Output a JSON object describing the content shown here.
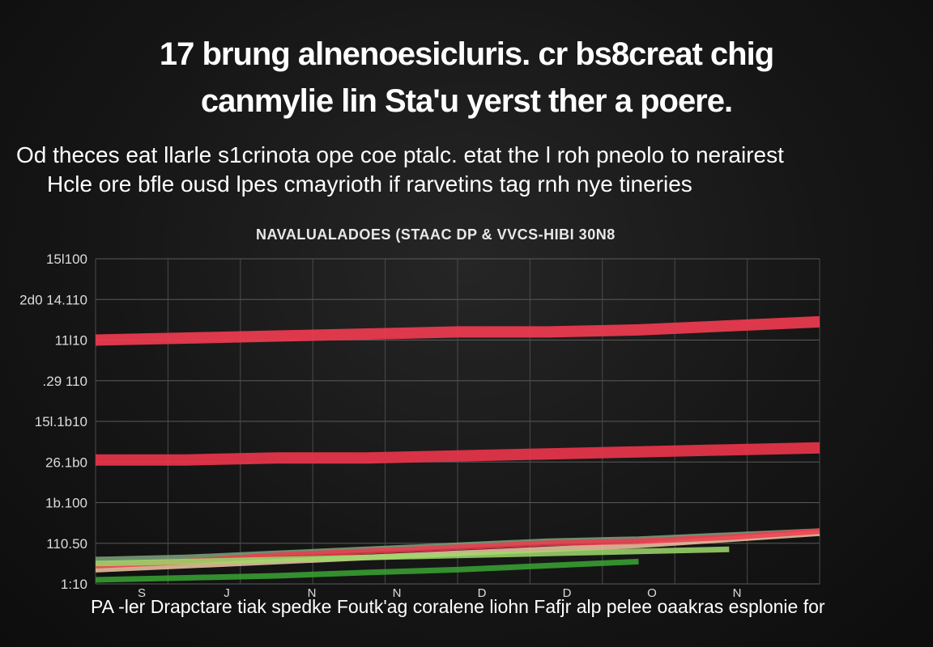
{
  "header": {
    "title_line1": "17 brung alnenoesicluris. cr bs8creat chig",
    "title_line2": "canmylie lin Sta'u yerst ther a poere.",
    "subtitle_line1": "Od theces eat llarle s1crinota ope coe ptalc. etat the l roh pneolo to nerairest",
    "subtitle_line2": "Hcle ore bfle ousd lpes cmayrioth if rarvetins tag rnh nye tineries"
  },
  "chart_data": {
    "type": "line",
    "title": "NAVALUALADOES (STAAC DP & VVCS-HIBI 30N8",
    "xlabel": "",
    "ylabel": "",
    "y_tick_labels": [
      "15l100",
      "2d0 14.110",
      "11l10",
      ".29 110",
      "15l.1b10",
      "26.1b0",
      "1b.100",
      "110.50",
      "1:10"
    ],
    "x_tick_labels": [
      "S",
      "J",
      "N",
      "N",
      "D",
      "D",
      "O",
      "N"
    ],
    "grid": true,
    "x": [
      0,
      1,
      2,
      3,
      4,
      5,
      6,
      7,
      8
    ],
    "series": [
      {
        "color": "#ee3b4f",
        "values": [
          6.0,
          6.05,
          6.1,
          6.15,
          6.2,
          6.2,
          6.25,
          6.35,
          6.45
        ]
      },
      {
        "color": "#e8344a",
        "values": [
          3.05,
          3.05,
          3.1,
          3.1,
          3.15,
          3.2,
          3.25,
          3.3,
          3.35
        ]
      },
      {
        "color": "#7fa37e",
        "values": [
          0.6,
          0.65,
          0.75,
          0.85,
          0.95,
          1.05,
          1.1,
          1.2,
          1.3
        ]
      },
      {
        "color": "#f2c7a3",
        "values": [
          0.35,
          0.45,
          0.55,
          0.65,
          0.75,
          0.85,
          0.95,
          1.1,
          1.25
        ]
      },
      {
        "color": "#ee3b4f",
        "values": [
          0.45,
          0.55,
          0.7,
          0.8,
          0.9,
          1.0,
          1.05,
          1.15,
          1.3
        ]
      },
      {
        "color": "#9ed96a",
        "values": [
          0.5,
          0.55,
          0.6,
          0.65,
          0.7,
          0.75,
          0.8,
          0.85,
          null
        ]
      },
      {
        "color": "#3aa532",
        "values": [
          0.1,
          0.15,
          0.2,
          0.28,
          0.35,
          0.45,
          0.55,
          null,
          null
        ]
      }
    ]
  },
  "footer": {
    "caption": "PA -ler Drapctare tiak spedke Foutk'ag coralene liohn Fafjr alp pelee oaakras esplonie for"
  }
}
